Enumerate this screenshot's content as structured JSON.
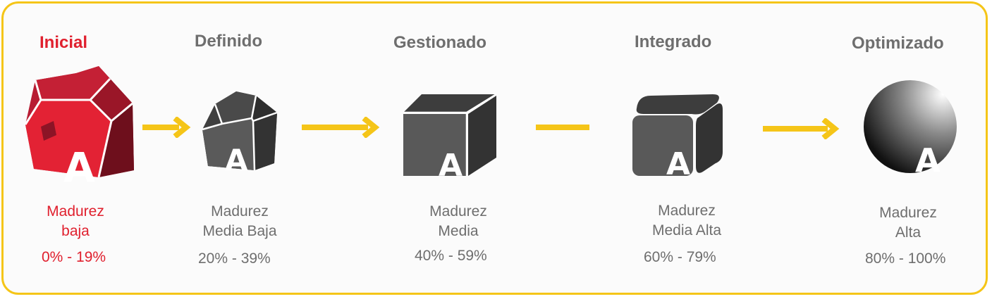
{
  "colors": {
    "accent": "#f5c518",
    "active": "#e0202e",
    "inactive": "#6e6e6e"
  },
  "stages": [
    {
      "title": "Inicial",
      "line1": "Madurez",
      "line2": "baja",
      "range": "0% - 19%",
      "icon": "red-rock-icon"
    },
    {
      "title": "Definido",
      "line1": "Madurez",
      "line2": "Media Baja",
      "range": "20% - 39%",
      "icon": "gray-rock-icon"
    },
    {
      "title": "Gestionado",
      "line1": "Madurez",
      "line2": "Media",
      "range": "40% - 59%",
      "icon": "cube-icon"
    },
    {
      "title": "Integrado",
      "line1": "Madurez",
      "line2": "Media Alta",
      "range": "60% - 79%",
      "icon": "rounded-cube-icon"
    },
    {
      "title": "Optimizado",
      "line1": "Madurez",
      "line2": "Alta",
      "range": "80% - 100%",
      "icon": "sphere-icon"
    }
  ],
  "logo_letter": "A"
}
